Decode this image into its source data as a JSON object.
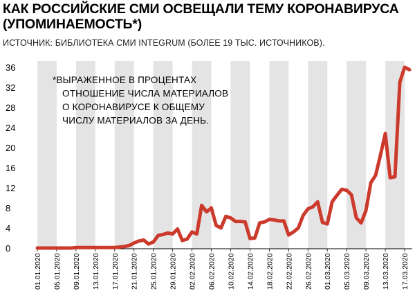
{
  "title_line1": "КАК РОССИЙСКИЕ СМИ ОСВЕЩАЛИ ТЕМУ КОРОНАВИРУСА",
  "title_line2": "(УПОМИНАЕМОСТЬ*)",
  "source": "ИСТОЧНИК: БИБЛИОТЕКА СМИ INTEGRUM (БОЛЕЕ 19 ТЫС. ИСТОЧНИКОВ).",
  "footnote": [
    "*ВЫРАЖЕННОЕ В ПРОЦЕНТАХ",
    "ОТНОШЕНИЕ ЧИСЛА МАТЕРИАЛОВ",
    "О КОРОНАВИРУСЕ К ОБЩЕМУ",
    "ЧИСЛУ МАТЕРИАЛОВ ЗА ДЕНЬ."
  ],
  "colors": {
    "line": "#cc3a2c",
    "stripe": "#e4e4e4",
    "axis": "#000000",
    "text": "#000000"
  },
  "chart_data": {
    "type": "line",
    "ylim": [
      0,
      36
    ],
    "yticks": [
      0,
      4,
      8,
      12,
      16,
      20,
      24,
      28,
      32,
      36
    ],
    "xticks": [
      "01.01.2020",
      "05.01.2020",
      "09.01.2020",
      "13.01.2020",
      "17.01.2020",
      "21.01.2020",
      "25.01.2020",
      "29.01.2020",
      "02.02.2020",
      "06.02.2020",
      "10.02.2020",
      "14.02.2020",
      "18.02.2020",
      "22.02.2020",
      "26.02.2020",
      "01.03.2020",
      "05.03.2020",
      "09.03.2020",
      "13.03.2020",
      "17.03.2020"
    ],
    "x_start": "01.01.2020",
    "x_end": "18.03.2020",
    "grid": "vertical alternating stripes",
    "series": [
      {
        "x": [
          "01.01.2020",
          "02.01.2020",
          "03.01.2020",
          "04.01.2020",
          "05.01.2020",
          "06.01.2020",
          "07.01.2020",
          "08.01.2020",
          "09.01.2020",
          "10.01.2020",
          "11.01.2020",
          "12.01.2020",
          "13.01.2020",
          "14.01.2020",
          "15.01.2020",
          "16.01.2020",
          "17.01.2020",
          "18.01.2020",
          "19.01.2020",
          "20.01.2020",
          "21.01.2020",
          "22.01.2020",
          "23.01.2020",
          "24.01.2020",
          "25.01.2020",
          "26.01.2020",
          "27.01.2020",
          "28.01.2020",
          "29.01.2020",
          "30.01.2020",
          "31.01.2020",
          "01.02.2020",
          "02.02.2020",
          "03.02.2020",
          "04.02.2020",
          "05.02.2020",
          "06.02.2020",
          "07.02.2020",
          "08.02.2020",
          "09.02.2020",
          "10.02.2020",
          "11.02.2020",
          "12.02.2020",
          "13.02.2020",
          "14.02.2020",
          "15.02.2020",
          "16.02.2020",
          "17.02.2020",
          "18.02.2020",
          "19.02.2020",
          "20.02.2020",
          "21.02.2020",
          "22.02.2020",
          "23.02.2020",
          "24.02.2020",
          "25.02.2020",
          "26.02.2020",
          "27.02.2020",
          "28.02.2020",
          "29.02.2020",
          "01.03.2020",
          "02.03.2020",
          "03.03.2020",
          "04.03.2020",
          "05.03.2020",
          "06.03.2020",
          "07.03.2020",
          "08.03.2020",
          "09.03.2020",
          "10.03.2020",
          "11.03.2020",
          "12.03.2020",
          "13.03.2020",
          "14.03.2020",
          "15.03.2020",
          "16.03.2020",
          "17.03.2020",
          "18.03.2020"
        ],
        "values": [
          0,
          0,
          0,
          0,
          0,
          0,
          0,
          0,
          0.1,
          0.1,
          0.1,
          0.1,
          0.1,
          0.1,
          0.1,
          0.1,
          0.1,
          0.2,
          0.3,
          0.5,
          1.0,
          1.4,
          1.6,
          0.8,
          1.2,
          2.5,
          2.7,
          3.0,
          2.8,
          3.8,
          1.5,
          1.8,
          3.2,
          2.8,
          8.5,
          7.2,
          8.0,
          4.5,
          4.0,
          6.3,
          6.0,
          5.3,
          5.3,
          5.2,
          1.9,
          2.0,
          5.0,
          5.2,
          5.7,
          5.6,
          5.4,
          5.4,
          2.6,
          3.2,
          4.0,
          6.5,
          7.8,
          8.2,
          9.2,
          5.1,
          4.8,
          9.2,
          10.5,
          11.7,
          11.5,
          10.6,
          6.0,
          5.0,
          7.5,
          13.0,
          14.5,
          18.5,
          22.8,
          14.0,
          14.2,
          33.0,
          36.0,
          35.5
        ]
      }
    ]
  }
}
